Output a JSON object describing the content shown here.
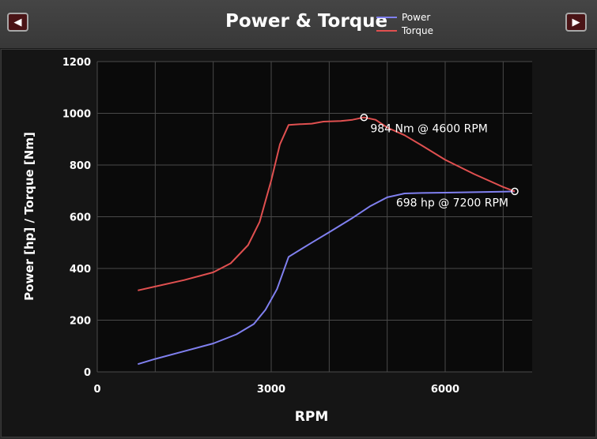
{
  "header": {
    "title": "Power & Torque",
    "prev_icon": "◀",
    "next_icon": "▶"
  },
  "legend": [
    {
      "name": "Power",
      "color": "#8080f0"
    },
    {
      "name": "Torque",
      "color": "#e05050"
    }
  ],
  "chart_data": {
    "type": "line",
    "title": "Power & Torque",
    "xlabel": "RPM",
    "ylabel": "Power [hp] / Torque [Nm]",
    "xlim": [
      0,
      7500
    ],
    "ylim": [
      0,
      1200
    ],
    "xticks": [
      0,
      3000,
      6000
    ],
    "yticks": [
      0,
      200,
      400,
      600,
      800,
      1000,
      1200
    ],
    "grid": true,
    "legend_position": "top",
    "series": [
      {
        "name": "Power",
        "color": "#8080f0",
        "x": [
          700,
          1000,
          1500,
          2000,
          2400,
          2700,
          2900,
          3100,
          3300,
          3700,
          4000,
          4400,
          4700,
          5000,
          5300,
          5600,
          6000,
          6500,
          7000,
          7200
        ],
        "y": [
          30,
          50,
          80,
          110,
          145,
          185,
          240,
          320,
          445,
          500,
          540,
          595,
          640,
          675,
          690,
          692,
          693,
          695,
          697,
          698
        ]
      },
      {
        "name": "Torque",
        "color": "#e05050",
        "x": [
          700,
          1000,
          1500,
          2000,
          2300,
          2600,
          2800,
          3000,
          3150,
          3300,
          3500,
          3700,
          3900,
          4200,
          4400,
          4600,
          4800,
          5000,
          5300,
          5600,
          6000,
          6500,
          7000,
          7200
        ],
        "y": [
          315,
          330,
          355,
          385,
          420,
          490,
          580,
          740,
          880,
          955,
          958,
          960,
          968,
          970,
          975,
          984,
          975,
          945,
          915,
          875,
          820,
          765,
          715,
          698
        ]
      }
    ],
    "annotations": [
      {
        "text": "984 Nm @ 4600 RPM",
        "x": 4600,
        "y": 984,
        "series": "Torque"
      },
      {
        "text": "698 hp @ 7200 RPM",
        "x": 7200,
        "y": 698,
        "series": "Power"
      }
    ]
  }
}
